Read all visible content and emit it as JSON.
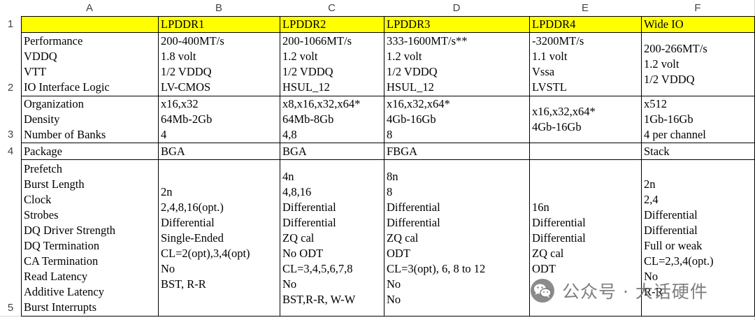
{
  "sheet": {
    "column_headers": [
      "A",
      "B",
      "C",
      "D",
      "E",
      "F"
    ],
    "header_fill": "#ffff00",
    "border_color": "#000000"
  },
  "rows": [
    {
      "number": "1",
      "cells": [
        [],
        [
          "LPDDR1"
        ],
        [
          "LPDDR2"
        ],
        [
          "LPDDR3"
        ],
        [
          "LPDDR4"
        ],
        [
          "Wide IO"
        ]
      ]
    },
    {
      "number": "2",
      "cells": [
        [
          "Performance",
          "VDDQ",
          "VTT",
          "IO Interface Logic"
        ],
        [
          "200-400MT/s",
          "1.8 volt",
          "1/2 VDDQ",
          "LV-CMOS"
        ],
        [
          "200-1066MT/s",
          "1.2 volt",
          "1/2 VDDQ",
          "HSUL_12"
        ],
        [
          "333-1600MT/s**",
          "1.2 volt",
          "1/2 VDDQ",
          "HSUL_12"
        ],
        [
          "-3200MT/s",
          "1.1 volt",
          "Vssa",
          "LVSTL"
        ],
        [
          "200-266MT/s",
          "1.2 volt",
          "1/2 VDDQ"
        ]
      ]
    },
    {
      "number": "3",
      "cells": [
        [
          "Organization",
          "Density",
          "Number of Banks"
        ],
        [
          "x16,x32",
          "64Mb-2Gb",
          "4"
        ],
        [
          "x8,x16,x32,x64*",
          "64Mb-8Gb",
          "4,8"
        ],
        [
          "x16,x32,x64*",
          "4Gb-16Gb",
          "8"
        ],
        [
          "x16,x32,x64*",
          "4Gb-16Gb"
        ],
        [
          "x512",
          "1Gb-16Gb",
          "4 per channel"
        ]
      ]
    },
    {
      "number": "4",
      "cells": [
        [
          "Package"
        ],
        [
          "BGA"
        ],
        [
          "BGA"
        ],
        [
          "FBGA"
        ],
        [],
        [
          "Stack"
        ]
      ]
    },
    {
      "number": "5",
      "cells": [
        [
          "Prefetch",
          "Burst Length",
          "Clock",
          "Strobes",
          "DQ Driver Strength",
          "DQ Termination",
          "CA Termination",
          "Read Latency",
          "Additive Latency",
          "Burst Interrupts"
        ],
        [
          "2n",
          "2,4,8,16(opt.)",
          "Differential",
          "Single-Ended",
          "CL=2(opt),3,4(opt)",
          "No",
          "BST, R-R"
        ],
        [
          "4n",
          "4,8,16",
          "Differential",
          "Differential",
          "ZQ cal",
          "No ODT",
          "CL=3,4,5,6,7,8",
          "No",
          "BST,R-R, W-W"
        ],
        [
          "8n",
          "8",
          "Differential",
          "Differential",
          "ZQ cal",
          "ODT",
          "CL=3(opt), 6, 8 to 12",
          "No",
          "No"
        ],
        [
          "16n",
          "Differential",
          "Differential",
          "ZQ cal",
          "ODT"
        ],
        [
          "2n",
          "2,4",
          "Differential",
          "Differential",
          "Full or weak",
          "CL=2,3,4(opt.)",
          "No",
          "R-R"
        ]
      ]
    }
  ],
  "watermark": {
    "text": "公众号 · 大话硬件",
    "icon": "wechat-icon"
  }
}
